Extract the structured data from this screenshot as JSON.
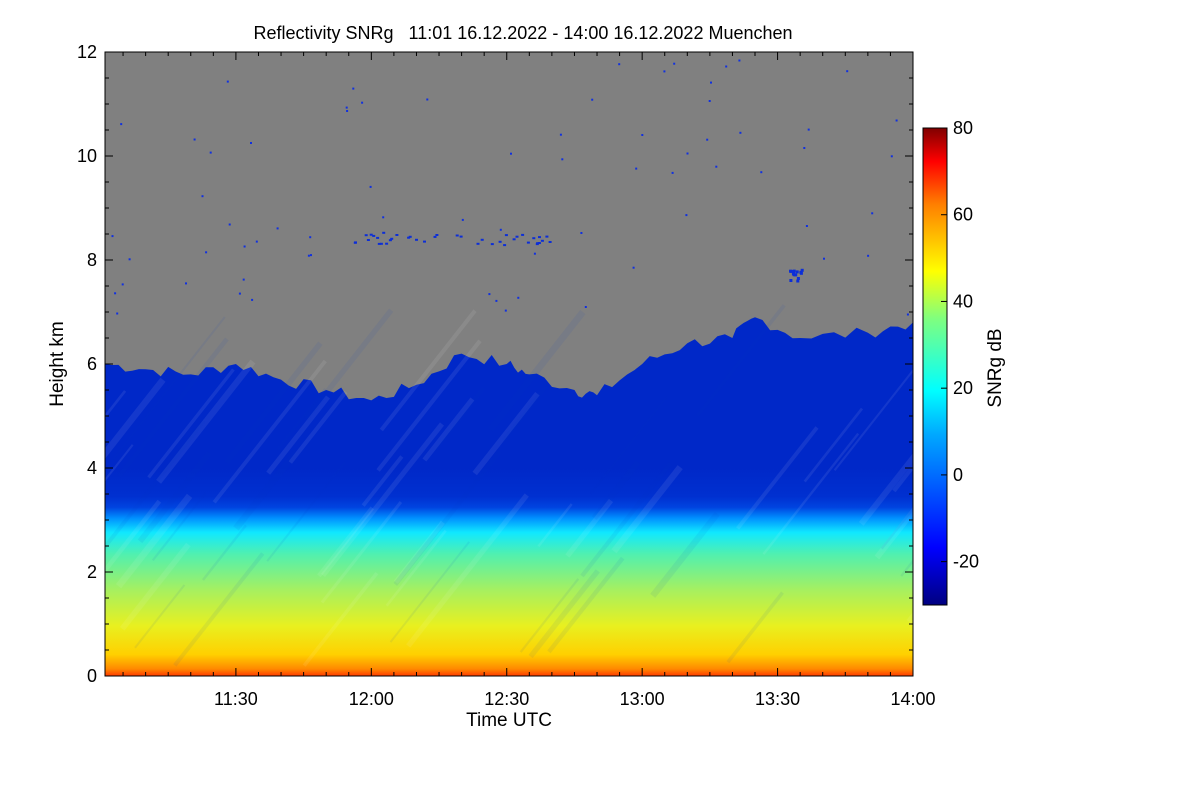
{
  "chart_data": {
    "type": "heatmap",
    "title": "Reflectivity SNRg   11:01 16.12.2022 - 14:00 16.12.2022 Muenchen",
    "xlabel": "Time UTC",
    "ylabel": "Height km",
    "xlim": [
      "11:01",
      "14:00"
    ],
    "ylim": [
      0,
      12
    ],
    "xticks": [
      "11:30",
      "12:00",
      "12:30",
      "13:00",
      "13:30",
      "14:00"
    ],
    "yticks": [
      "0",
      "2",
      "4",
      "6",
      "8",
      "10",
      "12"
    ],
    "colorbar": {
      "label": "SNRg dB",
      "range": [
        -30,
        80
      ],
      "ticks": [
        "-20",
        "0",
        "20",
        "40",
        "60",
        "80"
      ]
    },
    "background_color": "#808080",
    "echo_top_km": [
      {
        "t": "11:01",
        "h": 6.0
      },
      {
        "t": "11:10",
        "h": 5.9
      },
      {
        "t": "11:20",
        "h": 5.8
      },
      {
        "t": "11:30",
        "h": 6.0
      },
      {
        "t": "11:40",
        "h": 5.7
      },
      {
        "t": "11:50",
        "h": 5.5
      },
      {
        "t": "12:00",
        "h": 5.3
      },
      {
        "t": "12:10",
        "h": 5.6
      },
      {
        "t": "12:20",
        "h": 6.2
      },
      {
        "t": "12:30",
        "h": 6.0
      },
      {
        "t": "12:35",
        "h": 5.8
      },
      {
        "t": "12:45",
        "h": 5.5
      },
      {
        "t": "12:50",
        "h": 5.4
      },
      {
        "t": "13:00",
        "h": 6.0
      },
      {
        "t": "13:10",
        "h": 6.4
      },
      {
        "t": "13:20",
        "h": 6.5
      },
      {
        "t": "13:25",
        "h": 6.9
      },
      {
        "t": "13:35",
        "h": 6.5
      },
      {
        "t": "13:50",
        "h": 6.6
      },
      {
        "t": "14:00",
        "h": 6.8
      }
    ]
  }
}
